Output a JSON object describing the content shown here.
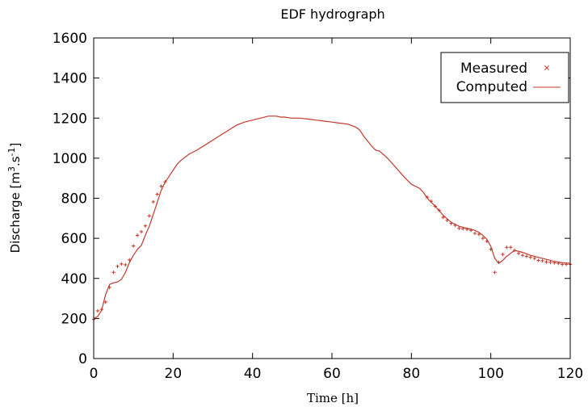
{
  "chart_data": {
    "type": "scatter",
    "title": "EDF hydrograph",
    "xlabel": "Time [h]",
    "ylabel": {
      "prefix": "Discharge [m",
      "sup1": "3",
      "mid": ".s",
      "sup2": "-1",
      "suffix": "]"
    },
    "xlim": [
      0,
      120
    ],
    "ylim": [
      0,
      1600
    ],
    "xticks": [
      0,
      20,
      40,
      60,
      80,
      100,
      120
    ],
    "yticks": [
      0,
      200,
      400,
      600,
      800,
      1000,
      1200,
      1400,
      1600
    ],
    "grid": false,
    "legend": {
      "placement": "top-right",
      "entries": [
        "Measured",
        "Computed"
      ]
    },
    "colors": {
      "series": "#c0392b"
    },
    "series": [
      {
        "name": "Measured",
        "kind": "points",
        "x": [
          0,
          1,
          2,
          3,
          4,
          5,
          6,
          7,
          8,
          9,
          10,
          11,
          12,
          13,
          14,
          15,
          16,
          17,
          18,
          84,
          85,
          86,
          87,
          88,
          89,
          90,
          91,
          92,
          93,
          94,
          95,
          96,
          97,
          98,
          99,
          100,
          101,
          102,
          103,
          104,
          105,
          106,
          107,
          108,
          109,
          110,
          111,
          112,
          113,
          114,
          115,
          116,
          117,
          118,
          119,
          120
        ],
        "y": [
          195,
          238,
          245,
          282,
          355,
          430,
          460,
          472,
          468,
          492,
          562,
          615,
          633,
          662,
          712,
          782,
          820,
          860,
          882,
          805,
          785,
          760,
          740,
          705,
          690,
          675,
          665,
          650,
          648,
          645,
          640,
          625,
          620,
          600,
          585,
          545,
          430,
          480,
          520,
          555,
          555,
          540,
          525,
          515,
          510,
          505,
          500,
          490,
          488,
          482,
          480,
          478,
          475,
          470,
          470,
          470
        ]
      },
      {
        "name": "Computed",
        "kind": "line",
        "x": [
          0,
          1,
          2,
          3,
          4,
          5,
          6,
          7,
          8,
          9,
          10,
          11,
          12,
          13,
          14,
          15,
          16,
          17,
          18,
          19,
          20,
          21,
          22,
          24,
          26,
          28,
          30,
          32,
          34,
          36,
          38,
          40,
          42,
          44,
          46,
          47,
          48,
          50,
          52,
          54,
          56,
          58,
          60,
          62,
          64,
          66,
          67,
          68,
          70,
          71,
          72,
          74,
          76,
          78,
          80,
          82,
          83,
          84,
          86,
          88,
          90,
          92,
          94,
          96,
          97,
          98,
          99,
          100,
          101,
          102,
          103,
          104,
          105,
          106,
          108,
          110,
          112,
          114,
          116,
          118,
          120
        ],
        "y": [
          200,
          210,
          240,
          320,
          370,
          378,
          382,
          395,
          430,
          480,
          515,
          545,
          565,
          615,
          660,
          720,
          780,
          840,
          880,
          910,
          940,
          970,
          990,
          1020,
          1040,
          1065,
          1090,
          1115,
          1140,
          1165,
          1180,
          1190,
          1200,
          1210,
          1210,
          1205,
          1205,
          1200,
          1200,
          1195,
          1190,
          1185,
          1180,
          1175,
          1170,
          1155,
          1140,
          1110,
          1060,
          1040,
          1035,
          1000,
          955,
          910,
          870,
          850,
          830,
          800,
          760,
          715,
          680,
          660,
          650,
          640,
          630,
          615,
          595,
          560,
          500,
          475,
          490,
          510,
          525,
          540,
          530,
          515,
          505,
          495,
          485,
          478,
          475
        ]
      }
    ]
  }
}
